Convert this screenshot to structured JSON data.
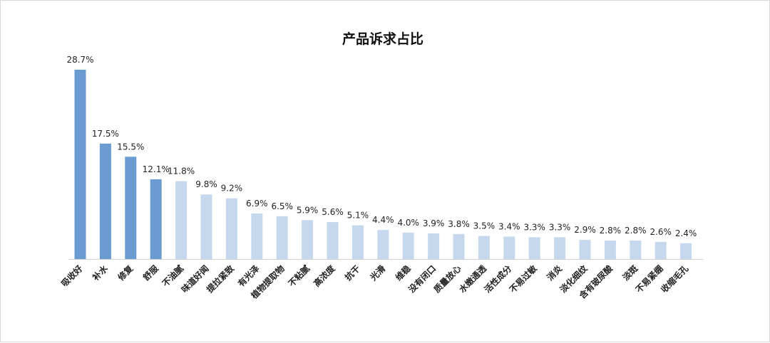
{
  "chart_data": {
    "type": "bar",
    "title": "产品诉求占比",
    "categories": [
      "吸收好",
      "补水",
      "修复",
      "舒服",
      "不油腻",
      "味道好闻",
      "提拉紧致",
      "有光泽",
      "植物提取物",
      "不粘腻",
      "高浓度",
      "抗干",
      "光滑",
      "维稳",
      "没有闭口",
      "质量放心",
      "水嫩通透",
      "活性成分",
      "不易过敏",
      "消炎",
      "淡化细纹",
      "含有玻尿酸",
      "淡斑",
      "不易紧绷",
      "收缩毛孔"
    ],
    "values": [
      28.7,
      17.5,
      15.5,
      12.1,
      11.8,
      9.8,
      9.2,
      6.9,
      6.5,
      5.9,
      5.6,
      5.1,
      4.4,
      4.0,
      3.9,
      3.8,
      3.5,
      3.4,
      3.3,
      3.3,
      2.9,
      2.8,
      2.8,
      2.6,
      2.4
    ],
    "value_labels": [
      "28.7%",
      "17.5%",
      "15.5%",
      "12.1%",
      "11.8%",
      "9.8%",
      "9.2%",
      "6.9%",
      "6.5%",
      "5.9%",
      "5.6%",
      "5.1%",
      "4.4%",
      "4.0%",
      "3.9%",
      "3.8%",
      "3.5%",
      "3.4%",
      "3.3%",
      "3.3%",
      "2.9%",
      "2.8%",
      "2.8%",
      "2.6%",
      "2.4%"
    ],
    "highlight_count": 4,
    "colors": {
      "highlight": "#6a9bd1",
      "normal": "#c5d8ee",
      "axis": "#cfcfcf"
    },
    "xlabel": "",
    "ylabel": "",
    "grid": false,
    "legend": "none"
  }
}
